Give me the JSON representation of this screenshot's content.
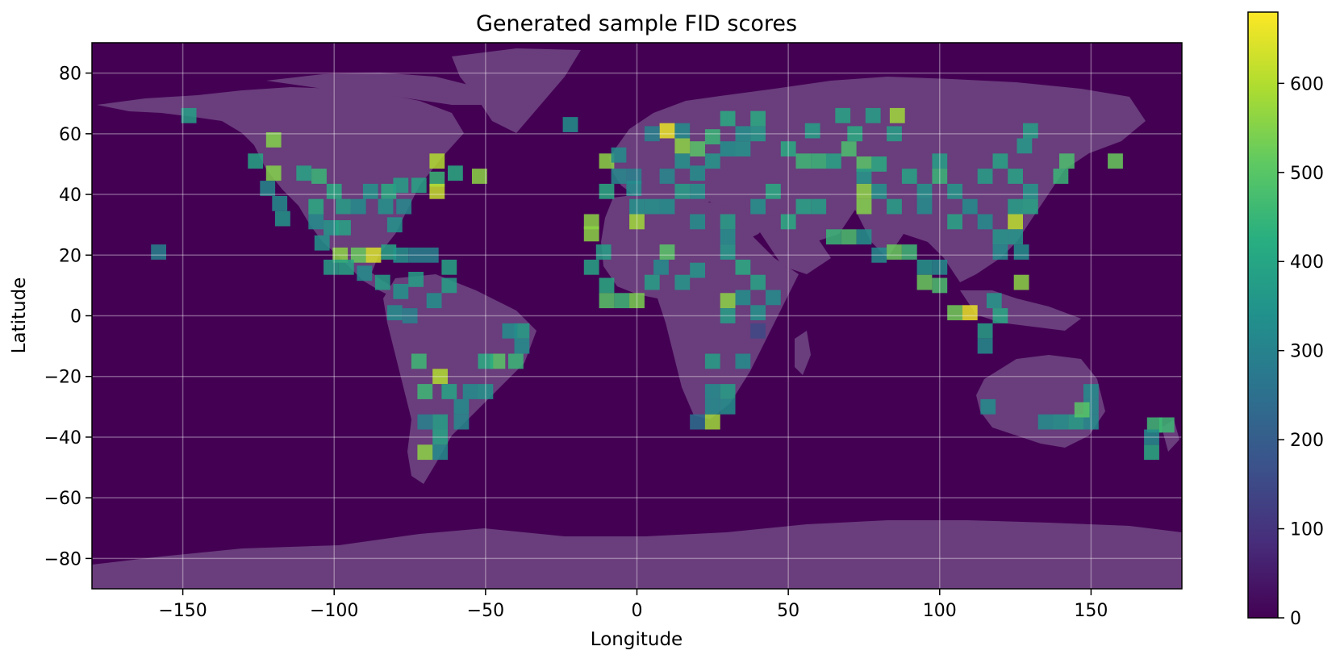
{
  "chart_data": {
    "type": "heatmap",
    "title": "Generated sample FID scores",
    "xlabel": "Longitude",
    "ylabel": "Latitude",
    "xlim": [
      -180,
      180
    ],
    "ylim": [
      -90,
      90
    ],
    "x_ticks": [
      -150,
      -100,
      -50,
      0,
      50,
      100,
      150
    ],
    "x_tick_labels": [
      "−150",
      "−100",
      "−50",
      "0",
      "50",
      "100",
      "150"
    ],
    "y_ticks": [
      80,
      60,
      40,
      20,
      0,
      -20,
      -40,
      -60,
      -80
    ],
    "y_tick_labels": [
      "80",
      "60",
      "40",
      "20",
      "0",
      "−20",
      "−40",
      "−60",
      "−80"
    ],
    "grid": true,
    "cell_size_deg": 5,
    "colorbar": {
      "colormap": "viridis",
      "range": [
        0,
        680
      ],
      "ticks": [
        0,
        100,
        200,
        300,
        400,
        500,
        600
      ],
      "tick_labels": [
        "0",
        "100",
        "200",
        "300",
        "400",
        "500",
        "600"
      ]
    },
    "background_color": "#440154",
    "land_color": "#6a3d7c",
    "cells": [
      [
        -148,
        66,
        380
      ],
      [
        -158,
        21,
        300
      ],
      [
        -126,
        51,
        400
      ],
      [
        -120,
        58,
        550
      ],
      [
        -120,
        47,
        550
      ],
      [
        -122,
        42,
        320
      ],
      [
        -118,
        37,
        330
      ],
      [
        -117,
        32,
        360
      ],
      [
        -110,
        47,
        400
      ],
      [
        -105,
        46,
        450
      ],
      [
        -100,
        41,
        420
      ],
      [
        -106,
        36,
        420
      ],
      [
        -97,
        36,
        380
      ],
      [
        -92,
        36,
        330
      ],
      [
        -106,
        31,
        330
      ],
      [
        -101,
        29,
        360
      ],
      [
        -97,
        29,
        400
      ],
      [
        -104,
        24,
        350
      ],
      [
        -98,
        20,
        560
      ],
      [
        -92,
        20,
        520
      ],
      [
        -87,
        20,
        640
      ],
      [
        -82,
        21,
        400
      ],
      [
        -78,
        20,
        350
      ],
      [
        -73,
        20,
        300
      ],
      [
        -68,
        20,
        300
      ],
      [
        -101,
        16,
        380
      ],
      [
        -96,
        16,
        400
      ],
      [
        -90,
        14,
        330
      ],
      [
        -84,
        11,
        380
      ],
      [
        -78,
        8,
        350
      ],
      [
        -73,
        12,
        380
      ],
      [
        -62,
        16,
        400
      ],
      [
        -62,
        10,
        380
      ],
      [
        -67,
        5,
        340
      ],
      [
        -75,
        0,
        300
      ],
      [
        -80,
        1,
        330
      ],
      [
        -88,
        41,
        350
      ],
      [
        -82,
        41,
        420
      ],
      [
        -78,
        43,
        380
      ],
      [
        -72,
        43,
        400
      ],
      [
        -66,
        51,
        600
      ],
      [
        -66,
        45,
        450
      ],
      [
        -60,
        47,
        420
      ],
      [
        -52,
        46,
        560
      ],
      [
        -66,
        41,
        620
      ],
      [
        -83,
        36,
        350
      ],
      [
        -77,
        36,
        320
      ],
      [
        -80,
        30,
        350
      ],
      [
        -38,
        -5,
        380
      ],
      [
        -42,
        -5,
        330
      ],
      [
        -38,
        -10,
        330
      ],
      [
        -40,
        -15,
        450
      ],
      [
        -46,
        -15,
        500
      ],
      [
        -50,
        -15,
        420
      ],
      [
        -65,
        -20,
        600
      ],
      [
        -70,
        -25,
        460
      ],
      [
        -62,
        -25,
        400
      ],
      [
        -55,
        -25,
        330
      ],
      [
        -50,
        -25,
        350
      ],
      [
        -58,
        -30,
        330
      ],
      [
        -65,
        -35,
        380
      ],
      [
        -58,
        -35,
        320
      ],
      [
        -70,
        -35,
        300
      ],
      [
        -72,
        -15,
        460
      ],
      [
        -65,
        -45,
        330
      ],
      [
        -70,
        -45,
        560
      ],
      [
        -65,
        -40,
        400
      ],
      [
        -22,
        63,
        340
      ],
      [
        -10,
        51,
        560
      ],
      [
        -6,
        53,
        330
      ],
      [
        -6,
        46,
        320
      ],
      [
        -1,
        46,
        300
      ],
      [
        -10,
        41,
        420
      ],
      [
        -1,
        42,
        330
      ],
      [
        -15,
        31,
        560
      ],
      [
        -15,
        27,
        560
      ],
      [
        -11,
        21,
        380
      ],
      [
        -15,
        16,
        400
      ],
      [
        -10,
        10,
        420
      ],
      [
        -10,
        5,
        500
      ],
      [
        -5,
        5,
        460
      ],
      [
        0,
        5,
        540
      ],
      [
        0,
        31,
        580
      ],
      [
        5,
        36,
        350
      ],
      [
        10,
        36,
        340
      ],
      [
        15,
        41,
        380
      ],
      [
        20,
        41,
        350
      ],
      [
        20,
        47,
        340
      ],
      [
        10,
        46,
        320
      ],
      [
        15,
        51,
        350
      ],
      [
        25,
        51,
        360
      ],
      [
        30,
        55,
        340
      ],
      [
        35,
        55,
        350
      ],
      [
        40,
        60,
        370
      ],
      [
        35,
        60,
        340
      ],
      [
        30,
        65,
        420
      ],
      [
        40,
        65,
        420
      ],
      [
        25,
        59,
        450
      ],
      [
        20,
        55,
        500
      ],
      [
        15,
        56,
        560
      ],
      [
        10,
        61,
        660
      ],
      [
        5,
        60,
        300
      ],
      [
        15,
        61,
        330
      ],
      [
        50,
        55,
        420
      ],
      [
        55,
        51,
        460
      ],
      [
        60,
        51,
        450
      ],
      [
        65,
        51,
        400
      ],
      [
        70,
        55,
        480
      ],
      [
        75,
        50,
        500
      ],
      [
        80,
        50,
        420
      ],
      [
        85,
        60,
        380
      ],
      [
        90,
        46,
        400
      ],
      [
        95,
        41,
        350
      ],
      [
        100,
        51,
        380
      ],
      [
        100,
        46,
        450
      ],
      [
        105,
        41,
        360
      ],
      [
        110,
        36,
        330
      ],
      [
        115,
        46,
        380
      ],
      [
        120,
        51,
        400
      ],
      [
        125,
        46,
        400
      ],
      [
        130,
        61,
        380
      ],
      [
        128,
        56,
        370
      ],
      [
        140,
        46,
        450
      ],
      [
        142,
        51,
        480
      ],
      [
        158,
        51,
        520
      ],
      [
        86,
        66,
        580
      ],
      [
        68,
        66,
        400
      ],
      [
        72,
        60,
        420
      ],
      [
        78,
        66,
        380
      ],
      [
        58,
        61,
        380
      ],
      [
        50,
        31,
        420
      ],
      [
        55,
        36,
        400
      ],
      [
        40,
        36,
        350
      ],
      [
        45,
        41,
        420
      ],
      [
        60,
        36,
        380
      ],
      [
        65,
        26,
        450
      ],
      [
        70,
        26,
        480
      ],
      [
        75,
        26,
        350
      ],
      [
        80,
        20,
        330
      ],
      [
        85,
        21,
        520
      ],
      [
        90,
        21,
        460
      ],
      [
        95,
        16,
        360
      ],
      [
        75,
        41,
        560
      ],
      [
        75,
        36,
        550
      ],
      [
        75,
        46,
        360
      ],
      [
        80,
        41,
        350
      ],
      [
        85,
        36,
        380
      ],
      [
        95,
        36,
        330
      ],
      [
        105,
        31,
        400
      ],
      [
        115,
        31,
        330
      ],
      [
        120,
        26,
        360
      ],
      [
        125,
        31,
        610
      ],
      [
        125,
        36,
        380
      ],
      [
        130,
        36,
        400
      ],
      [
        130,
        41,
        360
      ],
      [
        120,
        21,
        330
      ],
      [
        127,
        11,
        560
      ],
      [
        127,
        21,
        340
      ],
      [
        125,
        26,
        360
      ],
      [
        100,
        10,
        480
      ],
      [
        95,
        11,
        520
      ],
      [
        100,
        16,
        330
      ],
      [
        110,
        1,
        660
      ],
      [
        105,
        1,
        530
      ],
      [
        115,
        -5,
        380
      ],
      [
        115,
        -10,
        330
      ],
      [
        118,
        5,
        360
      ],
      [
        120,
        0,
        410
      ],
      [
        20,
        31,
        340
      ],
      [
        30,
        31,
        380
      ],
      [
        30,
        26,
        340
      ],
      [
        30,
        21,
        370
      ],
      [
        35,
        16,
        420
      ],
      [
        40,
        11,
        400
      ],
      [
        45,
        6,
        330
      ],
      [
        35,
        6,
        340
      ],
      [
        30,
        5,
        560
      ],
      [
        30,
        0,
        380
      ],
      [
        40,
        1,
        350
      ],
      [
        40,
        -5,
        150
      ],
      [
        35,
        -15,
        330
      ],
      [
        25,
        -15,
        380
      ],
      [
        25,
        -25,
        330
      ],
      [
        30,
        -25,
        380
      ],
      [
        30,
        -30,
        340
      ],
      [
        20,
        -35,
        250
      ],
      [
        25,
        -35,
        580
      ],
      [
        25,
        -30,
        330
      ],
      [
        8,
        16,
        330
      ],
      [
        5,
        11,
        380
      ],
      [
        15,
        11,
        360
      ],
      [
        20,
        15,
        360
      ],
      [
        10,
        21,
        500
      ],
      [
        0,
        36,
        350
      ],
      [
        116,
        -30,
        330
      ],
      [
        135,
        -35,
        330
      ],
      [
        140,
        -35,
        350
      ],
      [
        145,
        -35,
        380
      ],
      [
        150,
        -35,
        330
      ],
      [
        150,
        -25,
        330
      ],
      [
        150,
        -30,
        330
      ],
      [
        147,
        -31,
        500
      ],
      [
        171,
        -36,
        460
      ],
      [
        175,
        -36,
        460
      ],
      [
        170,
        -45,
        420
      ],
      [
        170,
        -40,
        330
      ]
    ]
  }
}
